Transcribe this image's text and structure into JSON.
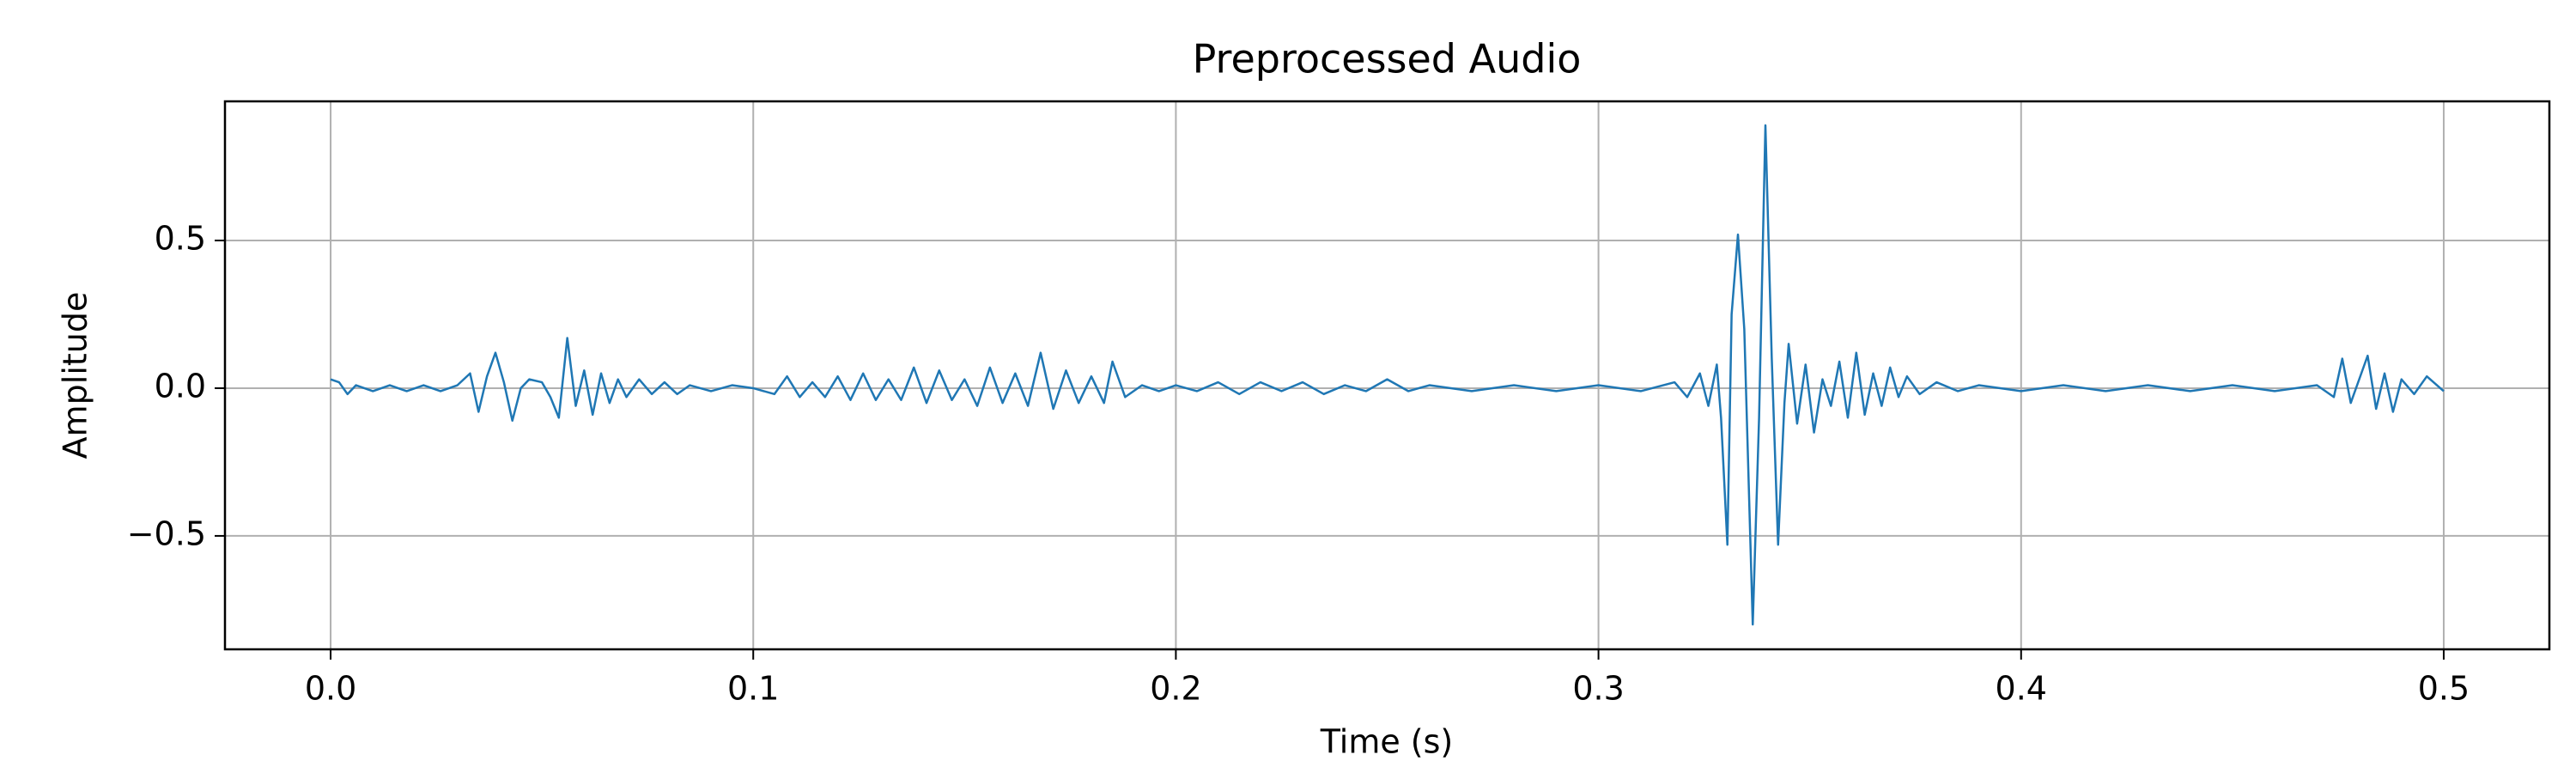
{
  "chart_data": {
    "type": "line",
    "title": "Preprocessed Audio",
    "xlabel": "Time (s)",
    "ylabel": "Amplitude",
    "xlim": [
      -0.025,
      0.525
    ],
    "ylim": [
      -0.884,
      0.971
    ],
    "xticks": [
      {
        "value": 0,
        "label": "0.0"
      },
      0.1,
      0.2,
      0.3,
      0.4,
      0.5
    ],
    "yticks": [
      {
        "value": -0.5,
        "label": "−0.5"
      },
      {
        "value": 0,
        "label": "0.0"
      },
      0.5
    ],
    "grid": true,
    "series": [
      {
        "color": "#1f77b4",
        "x": [
          0.0,
          0.002,
          0.004,
          0.006,
          0.01,
          0.014,
          0.018,
          0.022,
          0.026,
          0.03,
          0.033,
          0.035,
          0.037,
          0.039,
          0.041,
          0.043,
          0.045,
          0.047,
          0.05,
          0.052,
          0.054,
          0.056,
          0.058,
          0.06,
          0.062,
          0.064,
          0.066,
          0.068,
          0.07,
          0.073,
          0.076,
          0.079,
          0.082,
          0.085,
          0.09,
          0.095,
          0.1,
          0.105,
          0.108,
          0.111,
          0.114,
          0.117,
          0.12,
          0.123,
          0.126,
          0.129,
          0.132,
          0.135,
          0.138,
          0.141,
          0.144,
          0.147,
          0.15,
          0.153,
          0.156,
          0.159,
          0.162,
          0.165,
          0.168,
          0.171,
          0.174,
          0.177,
          0.18,
          0.183,
          0.185,
          0.188,
          0.192,
          0.196,
          0.2,
          0.205,
          0.21,
          0.215,
          0.22,
          0.225,
          0.23,
          0.235,
          0.24,
          0.245,
          0.25,
          0.255,
          0.26,
          0.27,
          0.28,
          0.29,
          0.3,
          0.31,
          0.318,
          0.321,
          0.324,
          0.326,
          0.328,
          0.329,
          0.3305,
          0.3315,
          0.333,
          0.3345,
          0.3365,
          0.338,
          0.3395,
          0.341,
          0.3425,
          0.344,
          0.345,
          0.347,
          0.349,
          0.351,
          0.353,
          0.355,
          0.357,
          0.359,
          0.361,
          0.363,
          0.365,
          0.367,
          0.369,
          0.371,
          0.373,
          0.376,
          0.38,
          0.385,
          0.39,
          0.4,
          0.41,
          0.42,
          0.43,
          0.44,
          0.45,
          0.46,
          0.47,
          0.474,
          0.476,
          0.478,
          0.48,
          0.482,
          0.484,
          0.486,
          0.488,
          0.49,
          0.493,
          0.496,
          0.5
        ],
        "values": [
          0.03,
          0.02,
          -0.02,
          0.01,
          -0.01,
          0.01,
          -0.01,
          0.01,
          -0.01,
          0.01,
          0.05,
          -0.08,
          0.04,
          0.12,
          0.02,
          -0.11,
          0.0,
          0.03,
          0.02,
          -0.03,
          -0.1,
          0.17,
          -0.06,
          0.06,
          -0.09,
          0.05,
          -0.05,
          0.03,
          -0.03,
          0.03,
          -0.02,
          0.02,
          -0.02,
          0.01,
          -0.01,
          0.01,
          0.0,
          -0.02,
          0.04,
          -0.03,
          0.02,
          -0.03,
          0.04,
          -0.04,
          0.05,
          -0.04,
          0.03,
          -0.04,
          0.07,
          -0.05,
          0.06,
          -0.04,
          0.03,
          -0.06,
          0.07,
          -0.05,
          0.05,
          -0.06,
          0.12,
          -0.07,
          0.06,
          -0.05,
          0.04,
          -0.05,
          0.09,
          -0.03,
          0.01,
          -0.01,
          0.01,
          -0.01,
          0.02,
          -0.02,
          0.02,
          -0.01,
          0.02,
          -0.02,
          0.01,
          -0.01,
          0.03,
          -0.01,
          0.01,
          -0.01,
          0.01,
          -0.01,
          0.01,
          -0.01,
          0.02,
          -0.03,
          0.05,
          -0.06,
          0.08,
          -0.1,
          -0.53,
          0.25,
          0.52,
          0.2,
          -0.8,
          -0.1,
          0.89,
          0.1,
          -0.53,
          -0.05,
          0.15,
          -0.12,
          0.08,
          -0.15,
          0.03,
          -0.06,
          0.09,
          -0.1,
          0.12,
          -0.09,
          0.05,
          -0.06,
          0.07,
          -0.03,
          0.04,
          -0.02,
          0.02,
          -0.01,
          0.01,
          -0.01,
          0.01,
          -0.01,
          0.01,
          -0.01,
          0.01,
          -0.01,
          0.01,
          -0.03,
          0.1,
          -0.05,
          0.03,
          0.11,
          -0.07,
          0.05,
          -0.08,
          0.03,
          -0.02,
          0.04,
          -0.01
        ]
      }
    ]
  }
}
